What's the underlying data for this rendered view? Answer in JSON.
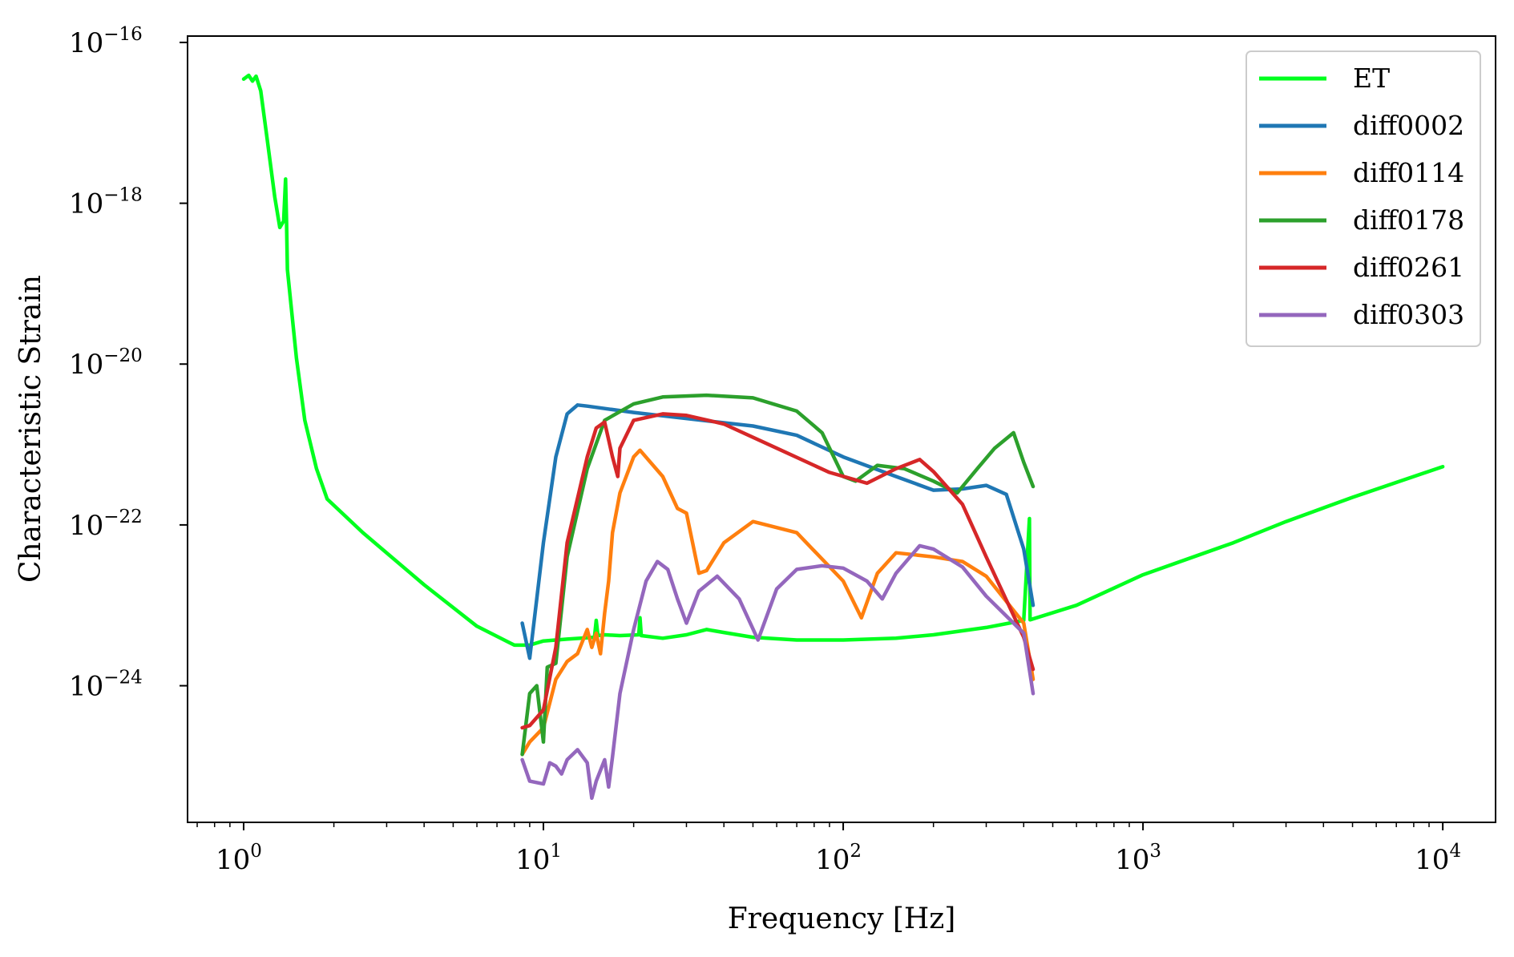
{
  "chart_data": {
    "type": "line",
    "xlabel": "Frequency [Hz]",
    "ylabel": "Characteristic Strain",
    "xscale": "log",
    "yscale": "log",
    "xlim": [
      0.65,
      15000
    ],
    "ylim": [
      2e-26,
      1.2e-16
    ],
    "x_ticks": [
      1,
      10,
      100,
      1000,
      10000
    ],
    "x_tick_labels": [
      "10^0",
      "10^1",
      "10^2",
      "10^3",
      "10^4"
    ],
    "y_ticks": [
      1e-24,
      1e-22,
      1e-20,
      1e-18,
      1e-16
    ],
    "y_tick_labels": [
      "10^-24",
      "10^-22",
      "10^-20",
      "10^-18",
      "10^-16"
    ],
    "grid": false,
    "legend_position": "top-right",
    "series": [
      {
        "name": "ET",
        "color": "#00ff1e",
        "points": [
          [
            1.0,
            3.5e-17
          ],
          [
            1.04,
            3.9e-17
          ],
          [
            1.07,
            3.3e-17
          ],
          [
            1.1,
            3.8e-17
          ],
          [
            1.14,
            2.5e-17
          ],
          [
            1.2,
            6e-18
          ],
          [
            1.27,
            1.2e-18
          ],
          [
            1.32,
            5e-19
          ],
          [
            1.36,
            6e-19
          ],
          [
            1.38,
            2e-18
          ],
          [
            1.39,
            6e-19
          ],
          [
            1.4,
            1.5e-19
          ],
          [
            1.5,
            1.2e-20
          ],
          [
            1.6,
            2e-21
          ],
          [
            1.75,
            5e-22
          ],
          [
            1.9,
            2.1e-22
          ],
          [
            2.5,
            8e-23
          ],
          [
            4,
            1.8e-23
          ],
          [
            6,
            5.5e-24
          ],
          [
            8,
            3.2e-24
          ],
          [
            9,
            3.2e-24
          ],
          [
            10,
            3.6e-24
          ],
          [
            12,
            3.8e-24
          ],
          [
            14.8,
            4e-24
          ],
          [
            15,
            6.5e-24
          ],
          [
            15.2,
            4.2e-24
          ],
          [
            16,
            4.3e-24
          ],
          [
            18,
            4.2e-24
          ],
          [
            20.8,
            4.3e-24
          ],
          [
            21,
            7e-24
          ],
          [
            21.2,
            4.2e-24
          ],
          [
            25,
            3.9e-24
          ],
          [
            30,
            4.3e-24
          ],
          [
            35,
            5e-24
          ],
          [
            40,
            4.6e-24
          ],
          [
            50,
            4e-24
          ],
          [
            70,
            3.7e-24
          ],
          [
            100,
            3.7e-24
          ],
          [
            150,
            3.9e-24
          ],
          [
            200,
            4.3e-24
          ],
          [
            300,
            5.3e-24
          ],
          [
            400,
            6.5e-24
          ],
          [
            418,
            1.2e-22
          ],
          [
            420,
            6.6e-24
          ],
          [
            600,
            1e-23
          ],
          [
            1000,
            2.4e-23
          ],
          [
            2000,
            6e-23
          ],
          [
            3000,
            1.1e-22
          ],
          [
            5000,
            2.2e-22
          ],
          [
            10000,
            5.3e-22
          ]
        ]
      },
      {
        "name": "diff0002",
        "color": "#1f77b4",
        "points": [
          [
            8.5,
            6e-24
          ],
          [
            9,
            2.2e-24
          ],
          [
            9.5,
            1.2e-23
          ],
          [
            10,
            6e-23
          ],
          [
            11,
            7e-22
          ],
          [
            12,
            2.4e-21
          ],
          [
            13,
            3.1e-21
          ],
          [
            14,
            3e-21
          ],
          [
            20,
            2.5e-21
          ],
          [
            30,
            2.1e-21
          ],
          [
            50,
            1.7e-21
          ],
          [
            70,
            1.3e-21
          ],
          [
            100,
            7e-22
          ],
          [
            150,
            4e-22
          ],
          [
            200,
            2.7e-22
          ],
          [
            250,
            2.8e-22
          ],
          [
            300,
            3.1e-22
          ],
          [
            350,
            2.4e-22
          ],
          [
            400,
            5e-23
          ],
          [
            430,
            1e-23
          ]
        ]
      },
      {
        "name": "diff0114",
        "color": "#ff7f0e",
        "points": [
          [
            8.5,
            1.4e-25
          ],
          [
            9,
            2e-25
          ],
          [
            10,
            3e-25
          ],
          [
            11,
            1.2e-24
          ],
          [
            12,
            2e-24
          ],
          [
            13,
            2.5e-24
          ],
          [
            14,
            5e-24
          ],
          [
            14.5,
            3e-24
          ],
          [
            15,
            4.5e-24
          ],
          [
            15.5,
            2.5e-24
          ],
          [
            16,
            8e-24
          ],
          [
            16.5,
            2e-23
          ],
          [
            17,
            8e-23
          ],
          [
            18,
            2.5e-22
          ],
          [
            20,
            7e-22
          ],
          [
            21,
            8.5e-22
          ],
          [
            25,
            4e-22
          ],
          [
            28,
            1.6e-22
          ],
          [
            30,
            1.4e-22
          ],
          [
            33,
            2.5e-23
          ],
          [
            35,
            2.7e-23
          ],
          [
            40,
            6e-23
          ],
          [
            50,
            1.1e-22
          ],
          [
            70,
            8e-23
          ],
          [
            100,
            2e-23
          ],
          [
            115,
            7e-24
          ],
          [
            130,
            2.5e-23
          ],
          [
            150,
            4.5e-23
          ],
          [
            200,
            4e-23
          ],
          [
            250,
            3.5e-23
          ],
          [
            300,
            2.3e-23
          ],
          [
            400,
            6e-24
          ],
          [
            430,
            1.2e-24
          ]
        ]
      },
      {
        "name": "diff0178",
        "color": "#2ca02c",
        "points": [
          [
            8.5,
            1.4e-25
          ],
          [
            9,
            8e-25
          ],
          [
            9.5,
            1e-24
          ],
          [
            10,
            2e-25
          ],
          [
            10.3,
            1.7e-24
          ],
          [
            11,
            1.9e-24
          ],
          [
            12,
            4e-23
          ],
          [
            14,
            5e-22
          ],
          [
            16,
            2e-21
          ],
          [
            20,
            3.2e-21
          ],
          [
            25,
            3.9e-21
          ],
          [
            35,
            4.1e-21
          ],
          [
            50,
            3.8e-21
          ],
          [
            70,
            2.6e-21
          ],
          [
            85,
            1.4e-21
          ],
          [
            100,
            4e-22
          ],
          [
            110,
            3.5e-22
          ],
          [
            130,
            5.5e-22
          ],
          [
            160,
            5e-22
          ],
          [
            200,
            3.5e-22
          ],
          [
            240,
            2.5e-22
          ],
          [
            280,
            5e-22
          ],
          [
            320,
            9e-22
          ],
          [
            370,
            1.4e-21
          ],
          [
            400,
            6e-22
          ],
          [
            430,
            3e-22
          ]
        ]
      },
      {
        "name": "diff0261",
        "color": "#d62728",
        "points": [
          [
            8.5,
            3e-25
          ],
          [
            9,
            3.2e-25
          ],
          [
            10,
            5e-25
          ],
          [
            11,
            3e-24
          ],
          [
            12,
            6e-23
          ],
          [
            14,
            7e-22
          ],
          [
            15,
            1.6e-21
          ],
          [
            16,
            1.9e-21
          ],
          [
            17,
            7e-22
          ],
          [
            17.7,
            4e-22
          ],
          [
            18,
            9e-22
          ],
          [
            20,
            2e-21
          ],
          [
            25,
            2.4e-21
          ],
          [
            30,
            2.3e-21
          ],
          [
            40,
            1.8e-21
          ],
          [
            60,
            9e-22
          ],
          [
            90,
            4.5e-22
          ],
          [
            120,
            3.3e-22
          ],
          [
            150,
            5e-22
          ],
          [
            180,
            6.5e-22
          ],
          [
            200,
            4.6e-22
          ],
          [
            250,
            1.8e-22
          ],
          [
            300,
            4e-23
          ],
          [
            400,
            4e-24
          ],
          [
            430,
            1.6e-24
          ]
        ]
      },
      {
        "name": "diff0303",
        "color": "#9467bd",
        "points": [
          [
            8.5,
            1.2e-25
          ],
          [
            9,
            6.5e-26
          ],
          [
            10,
            6e-26
          ],
          [
            10.5,
            1.1e-25
          ],
          [
            11,
            1e-25
          ],
          [
            11.5,
            8e-26
          ],
          [
            12,
            1.2e-25
          ],
          [
            13,
            1.6e-25
          ],
          [
            14,
            1.1e-25
          ],
          [
            14.5,
            4e-26
          ],
          [
            15,
            6.5e-26
          ],
          [
            16,
            1.2e-25
          ],
          [
            16.5,
            5.5e-26
          ],
          [
            17,
            1.3e-25
          ],
          [
            18,
            8e-25
          ],
          [
            20,
            5e-24
          ],
          [
            22,
            2e-23
          ],
          [
            24,
            3.5e-23
          ],
          [
            26,
            2.8e-23
          ],
          [
            28,
            1.2e-23
          ],
          [
            30,
            6e-24
          ],
          [
            33,
            1.5e-23
          ],
          [
            38,
            2.3e-23
          ],
          [
            45,
            1.2e-23
          ],
          [
            52,
            3.7e-24
          ],
          [
            60,
            1.6e-23
          ],
          [
            70,
            2.8e-23
          ],
          [
            85,
            3.1e-23
          ],
          [
            100,
            2.9e-23
          ],
          [
            120,
            2e-23
          ],
          [
            135,
            1.2e-23
          ],
          [
            150,
            2.5e-23
          ],
          [
            180,
            5.5e-23
          ],
          [
            200,
            5e-23
          ],
          [
            250,
            3e-23
          ],
          [
            300,
            1.3e-23
          ],
          [
            400,
            4.5e-24
          ],
          [
            430,
            8e-25
          ]
        ]
      }
    ]
  }
}
